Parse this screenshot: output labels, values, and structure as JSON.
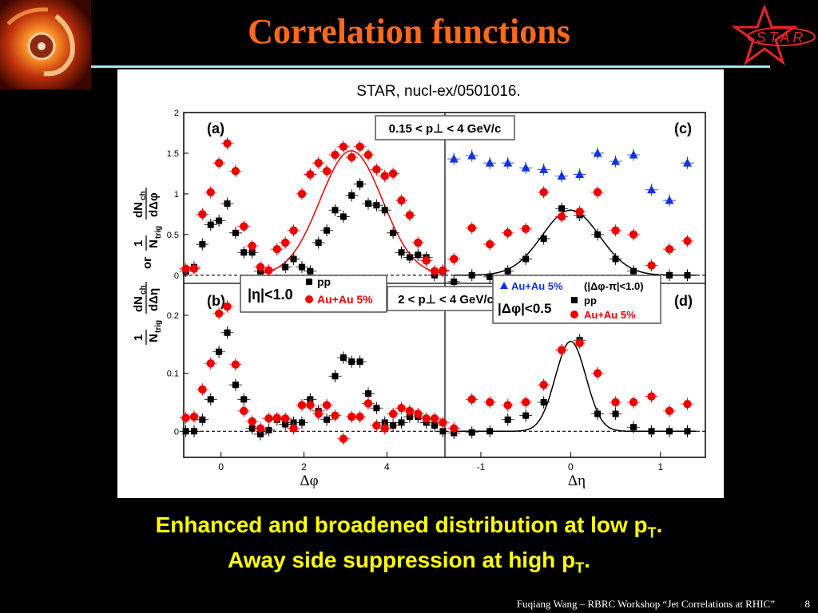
{
  "slide": {
    "title": "Correlation functions",
    "logo_text": "STAR",
    "caption_line1_main": "Enhanced and broadened distribution at low p",
    "caption_line1_sub": "T",
    "caption_line1_end": ".",
    "caption_line2_main": "Away side suppression at high p",
    "caption_line2_sub": "T",
    "caption_line2_end": ".",
    "footer": "Fuqiang Wang – RBRC Workshop “Jet Correlations at RHIC”",
    "page_number": "8",
    "colors": {
      "title": "#ff6a1a",
      "caption": "#ffff00",
      "rule": "#9fe6f0",
      "logo": "#e8232a",
      "background": "#000000"
    }
  },
  "figure": {
    "citation": "STAR, nucl-ex/0501016.",
    "ylabel_top_num": "dN",
    "ylabel_top_num_sub": "ch",
    "ylabel_top_den": "dΔη",
    "ylabel_pre_num": "1",
    "ylabel_pre_den": "N",
    "ylabel_pre_den_sub": "trig",
    "ylabel_bottom_num": "dN",
    "ylabel_bottom_num_sub": "ch",
    "ylabel_bottom_den": "dΔφ",
    "ylabel_or": "or",
    "xlabel_left": "Δφ",
    "xlabel_right": "Δη",
    "box_low_pt": "0.15 < p⊥ < 4 GeV/c",
    "box_high_pt": "2 < p⊥ < 4 GeV/c",
    "legend_left_cut": "|η|<1.0",
    "legend_left_pp": "pp",
    "legend_left_auau": "Au+Au 5%",
    "legend_right_auau_away": "Au+Au 5%",
    "legend_right_cut_away": "(|Δφ-π|<1.0)",
    "legend_right_cut": "|Δφ|<0.5",
    "legend_right_pp": "pp",
    "legend_right_auau": "Au+Au 5%",
    "colors": {
      "pp": "#000000",
      "auau": "#ee0000",
      "away": "#1133dd",
      "fit_auau": "#ee0000",
      "fit_pp": "#000000"
    }
  },
  "chart_data": [
    {
      "panel": "(a)",
      "type": "scatter",
      "xlabel": "Δφ",
      "ylabel": "1/N_trig dN_ch/dΔη or 1/N_trig dN_ch/dΔφ",
      "xlim": [
        -0.9,
        5.4
      ],
      "ylim": [
        -0.1,
        2.0
      ],
      "yticks": [
        0,
        0.5,
        1,
        1.5,
        2
      ],
      "ytick_labels": [
        "0",
        "0.5",
        "1",
        "1.5",
        "2"
      ],
      "reference_line": 0,
      "series": [
        {
          "name": "pp",
          "x": [
            -0.85,
            -0.65,
            -0.45,
            -0.25,
            -0.05,
            0.15,
            0.35,
            0.55,
            0.75,
            0.95,
            1.15,
            1.35,
            1.55,
            1.75,
            1.95,
            2.15,
            2.35,
            2.55,
            2.75,
            2.95,
            3.15,
            3.35,
            3.55,
            3.75,
            3.95,
            4.15,
            4.35,
            4.55,
            4.75,
            4.95,
            5.15,
            5.35
          ],
          "y": [
            0.05,
            0.1,
            0.38,
            0.62,
            0.67,
            0.88,
            0.52,
            0.28,
            0.28,
            0.05,
            -0.08,
            -0.06,
            0.1,
            0.2,
            0.1,
            0.05,
            0.4,
            0.55,
            0.8,
            0.72,
            0.98,
            1.12,
            0.88,
            0.86,
            0.8,
            0.52,
            0.28,
            0.22,
            0.25,
            0.22,
            0.0,
            0.05
          ]
        },
        {
          "name": "Au+Au 5%",
          "x": [
            -0.85,
            -0.65,
            -0.45,
            -0.25,
            -0.05,
            0.15,
            0.35,
            0.55,
            0.75,
            0.95,
            1.15,
            1.35,
            1.55,
            1.75,
            1.95,
            2.15,
            2.35,
            2.55,
            2.75,
            2.95,
            3.15,
            3.35,
            3.55,
            3.75,
            3.95,
            4.15,
            4.35,
            4.55,
            4.75,
            4.95,
            5.15,
            5.35
          ],
          "y": [
            0.08,
            0.08,
            0.75,
            1.02,
            1.38,
            1.62,
            1.28,
            0.6,
            0.36,
            0.1,
            0.06,
            0.32,
            0.4,
            0.55,
            1.0,
            1.24,
            1.38,
            1.28,
            1.48,
            1.58,
            1.45,
            1.58,
            1.48,
            1.3,
            1.22,
            1.25,
            0.92,
            0.74,
            0.4,
            0.18,
            0.05,
            0.06
          ]
        }
      ],
      "fit": {
        "series": "Au+Au 5%",
        "shape": "Gaussian away-side peak",
        "center": 3.14,
        "amplitude": 1.53
      }
    },
    {
      "panel": "(b)",
      "type": "scatter",
      "xlabel": "Δφ",
      "ylabel": "1/N_trig dN_ch/dΔφ",
      "xlim": [
        -0.9,
        5.4
      ],
      "ylim": [
        -0.045,
        0.255
      ],
      "xticks": [
        0,
        2,
        4
      ],
      "xtick_labels": [
        "0",
        "2",
        "4"
      ],
      "yticks": [
        0,
        0.1,
        0.2
      ],
      "ytick_labels": [
        "0",
        "0.1",
        "0.2"
      ],
      "reference_line": 0,
      "series": [
        {
          "name": "pp",
          "x": [
            -0.85,
            -0.65,
            -0.45,
            -0.25,
            -0.05,
            0.15,
            0.35,
            0.55,
            0.75,
            0.95,
            1.15,
            1.35,
            1.55,
            1.75,
            1.95,
            2.15,
            2.35,
            2.55,
            2.75,
            2.95,
            3.15,
            3.35,
            3.55,
            3.75,
            3.95,
            4.15,
            4.35,
            4.55,
            4.75,
            4.95,
            5.15,
            5.35
          ],
          "y": [
            0.0,
            0.0,
            0.02,
            0.055,
            0.137,
            0.17,
            0.08,
            0.055,
            0.005,
            -0.005,
            0.002,
            0.02,
            0.012,
            0.015,
            0.015,
            0.055,
            0.035,
            0.02,
            0.095,
            0.127,
            0.12,
            0.12,
            0.065,
            0.04,
            0.015,
            0.01,
            0.015,
            0.025,
            0.025,
            0.015,
            0.01,
            0.0
          ]
        },
        {
          "name": "Au+Au 5%",
          "x": [
            -0.85,
            -0.65,
            -0.45,
            -0.25,
            -0.05,
            0.15,
            0.35,
            0.55,
            0.75,
            0.95,
            1.15,
            1.35,
            1.55,
            1.75,
            1.95,
            2.15,
            2.35,
            2.55,
            2.75,
            2.95,
            3.15,
            3.35,
            3.55,
            3.75,
            3.95,
            4.15,
            4.35,
            4.55,
            4.75,
            4.95,
            5.15,
            5.35
          ],
          "y": [
            0.023,
            0.025,
            0.072,
            0.117,
            0.203,
            0.215,
            0.115,
            0.035,
            0.017,
            0.005,
            0.022,
            0.023,
            0.022,
            0.005,
            0.045,
            0.045,
            0.03,
            0.045,
            0.027,
            -0.013,
            0.025,
            0.025,
            0.048,
            0.01,
            0.005,
            0.03,
            0.04,
            0.035,
            0.03,
            0.022,
            0.022,
            0.015
          ]
        }
      ]
    },
    {
      "panel": "(c)",
      "type": "scatter",
      "xlabel": "Δη",
      "xlim": [
        -1.4,
        1.5
      ],
      "ylim": [
        -0.1,
        2.0
      ],
      "reference_line": 0,
      "series": [
        {
          "name": "Au+Au 5% (|Δφ-π|<1.0)",
          "x": [
            -1.3,
            -1.1,
            -0.9,
            -0.7,
            -0.5,
            -0.3,
            -0.1,
            0.1,
            0.3,
            0.5,
            0.7,
            0.9,
            1.1,
            1.3
          ],
          "y": [
            1.43,
            1.47,
            1.38,
            1.38,
            1.32,
            1.3,
            1.22,
            1.24,
            1.5,
            1.4,
            1.48,
            1.05,
            0.92,
            1.38
          ]
        },
        {
          "name": "pp",
          "x": [
            -1.3,
            -1.1,
            -0.9,
            -0.7,
            -0.5,
            -0.3,
            -0.1,
            0.1,
            0.3,
            0.5,
            0.7,
            0.9,
            1.1,
            1.3
          ],
          "y": [
            -0.08,
            0.0,
            -0.02,
            0.05,
            0.2,
            0.45,
            0.82,
            0.74,
            0.5,
            0.2,
            0.05,
            -0.12,
            0.0,
            0.0
          ]
        },
        {
          "name": "Au+Au 5%",
          "x": [
            -1.3,
            -1.1,
            -0.9,
            -0.7,
            -0.5,
            -0.3,
            -0.1,
            0.1,
            0.3,
            0.5,
            0.7,
            0.9,
            1.1,
            1.3
          ],
          "y": [
            0.2,
            0.58,
            0.38,
            0.52,
            0.57,
            1.02,
            0.72,
            0.78,
            1.02,
            0.55,
            0.5,
            0.12,
            0.32,
            0.42
          ]
        }
      ],
      "fit": {
        "series": "pp",
        "shape": "Gaussian near-side peak",
        "center": 0.0,
        "amplitude": 0.8
      }
    },
    {
      "panel": "(d)",
      "type": "scatter",
      "xlabel": "Δη",
      "xlim": [
        -1.4,
        1.5
      ],
      "ylim": [
        -0.045,
        0.255
      ],
      "xticks": [
        -1,
        0,
        1
      ],
      "xtick_labels": [
        "-1",
        "0",
        "1"
      ],
      "reference_line": 0,
      "series": [
        {
          "name": "pp",
          "x": [
            -1.3,
            -1.1,
            -0.9,
            -0.7,
            -0.5,
            -0.3,
            -0.1,
            0.1,
            0.3,
            0.5,
            0.7,
            0.9,
            1.1,
            1.3
          ],
          "y": [
            -0.003,
            -0.002,
            0.0,
            0.02,
            0.027,
            0.05,
            0.14,
            0.157,
            0.03,
            0.03,
            0.007,
            0.0,
            0.0,
            0.0
          ]
        },
        {
          "name": "Au+Au 5%",
          "x": [
            -1.3,
            -1.1,
            -0.9,
            -0.7,
            -0.5,
            -0.3,
            -0.1,
            0.1,
            0.3,
            0.5,
            0.7,
            0.9,
            1.1,
            1.3
          ],
          "y": [
            0.005,
            0.055,
            0.05,
            0.045,
            0.05,
            0.08,
            0.14,
            0.152,
            0.1,
            0.05,
            0.05,
            0.06,
            0.035,
            0.047
          ]
        }
      ],
      "fit": {
        "series": "pp",
        "shape": "Gaussian near-side peak",
        "center": 0.0,
        "amplitude": 0.155
      }
    }
  ]
}
